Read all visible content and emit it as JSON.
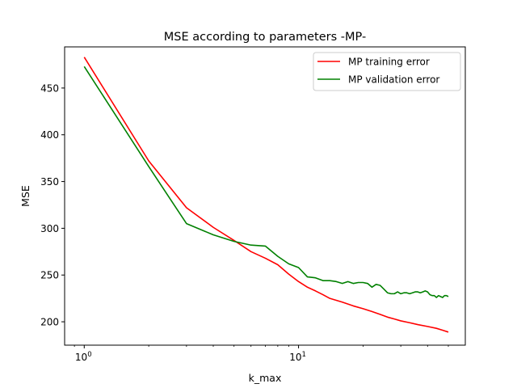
{
  "chart_data": {
    "type": "line",
    "title": "MSE according to parameters -MP-",
    "xlabel": "k_max",
    "ylabel": "MSE",
    "xscale": "log",
    "xlim": [
      0.81,
      60
    ],
    "ylim": [
      175,
      494
    ],
    "grid": false,
    "legend_position": "top-right",
    "x_ticks": [
      {
        "value": 1,
        "label": "10",
        "exp": "0"
      },
      {
        "value": 10,
        "label": "10",
        "exp": "1"
      }
    ],
    "y_ticks": [
      200,
      250,
      300,
      350,
      400,
      450
    ],
    "series": [
      {
        "name": "MP training error",
        "color": "#ff0000",
        "points": [
          [
            1,
            483
          ],
          [
            2,
            372
          ],
          [
            3,
            322
          ],
          [
            4,
            301
          ],
          [
            5,
            287
          ],
          [
            6,
            275
          ],
          [
            7,
            268
          ],
          [
            8,
            261
          ],
          [
            9,
            251
          ],
          [
            10,
            243
          ],
          [
            11,
            237
          ],
          [
            12,
            233
          ],
          [
            13,
            229
          ],
          [
            14,
            225
          ],
          [
            16,
            221
          ],
          [
            18,
            217
          ],
          [
            20,
            214
          ],
          [
            22,
            211
          ],
          [
            24,
            208
          ],
          [
            26,
            205
          ],
          [
            28,
            203
          ],
          [
            30,
            201
          ],
          [
            33,
            199
          ],
          [
            36,
            197
          ],
          [
            40,
            195
          ],
          [
            44,
            193
          ],
          [
            47,
            191
          ],
          [
            50,
            189
          ]
        ]
      },
      {
        "name": "MP validation error",
        "color": "#008000",
        "points": [
          [
            1,
            473
          ],
          [
            2,
            366
          ],
          [
            3,
            305
          ],
          [
            4,
            293
          ],
          [
            5,
            286
          ],
          [
            6,
            282
          ],
          [
            7,
            281
          ],
          [
            8,
            270
          ],
          [
            9,
            262
          ],
          [
            10,
            258
          ],
          [
            11,
            248
          ],
          [
            12,
            247
          ],
          [
            13,
            244
          ],
          [
            14,
            244
          ],
          [
            15,
            243
          ],
          [
            16,
            241
          ],
          [
            17,
            243
          ],
          [
            18,
            241
          ],
          [
            19,
            242
          ],
          [
            20,
            242
          ],
          [
            21,
            241
          ],
          [
            22,
            237
          ],
          [
            23,
            240
          ],
          [
            24,
            239
          ],
          [
            25,
            235
          ],
          [
            26,
            231
          ],
          [
            27,
            230
          ],
          [
            28,
            230
          ],
          [
            29,
            232
          ],
          [
            30,
            230
          ],
          [
            31,
            231
          ],
          [
            32,
            231
          ],
          [
            33,
            230
          ],
          [
            34,
            231
          ],
          [
            35,
            232
          ],
          [
            36,
            232
          ],
          [
            37,
            231
          ],
          [
            38,
            232
          ],
          [
            39,
            233
          ],
          [
            40,
            232
          ],
          [
            41,
            229
          ],
          [
            42,
            228
          ],
          [
            43,
            228
          ],
          [
            44,
            226
          ],
          [
            45,
            228
          ],
          [
            46,
            227
          ],
          [
            47,
            226
          ],
          [
            48,
            228
          ],
          [
            49,
            228
          ],
          [
            50,
            227
          ]
        ]
      }
    ]
  }
}
